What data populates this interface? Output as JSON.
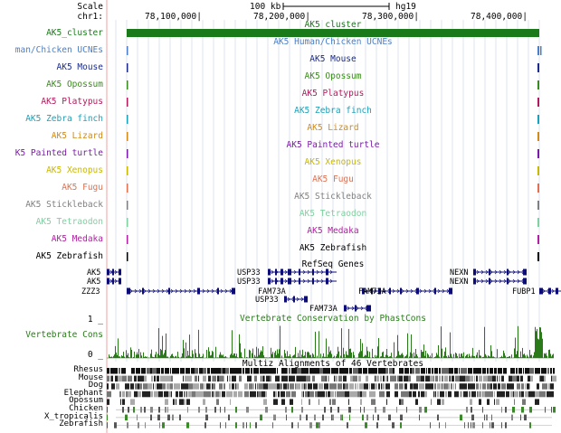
{
  "header": {
    "scale_label": "Scale",
    "chrom_label": "chr1:",
    "scale_bar_text": "100 kb",
    "assembly": "hg19",
    "ticks": [
      "78,100,000|",
      "78,200,000|",
      "78,300,000|",
      "78,400,000|"
    ]
  },
  "cluster": {
    "label": "AK5_cluster",
    "title": "AK5_cluster",
    "color": "#1a7a1a"
  },
  "species_tracks": [
    {
      "label": "man/Chicken UCNEs",
      "title": "AK5 Human/Chicken UCNEs",
      "color": "#4a7fc8"
    },
    {
      "label": "AK5 Mouse",
      "title": "AK5 Mouse",
      "color": "#1a2b8c"
    },
    {
      "label": "AK5 Opossum",
      "title": "AK5 Opossum",
      "color": "#3a8a1e"
    },
    {
      "label": "AK5 Platypus",
      "title": "AK5 Platypus",
      "color": "#b0195c"
    },
    {
      "label": "AK5 Zebra finch",
      "title": "AK5 Zebra finch",
      "color": "#1aa0b8"
    },
    {
      "label": "AK5 Lizard",
      "title": "AK5 Lizard",
      "color": "#d08a1a"
    },
    {
      "label": "K5 Painted turtle",
      "title": "AK5 Painted turtle",
      "color": "#7a1aa8"
    },
    {
      "label": "AK5 Xenopus",
      "title": "AK5 Xenopus",
      "color": "#c8b800"
    },
    {
      "label": "AK5 Fugu",
      "title": "AK5 Fugu",
      "color": "#e07050"
    },
    {
      "label": "AK5 Stickleback",
      "title": "AK5 Stickleback",
      "color": "#808080"
    },
    {
      "label": "AK5 Tetraodon",
      "title": "AK5 Tetraodon",
      "color": "#80d0a0"
    },
    {
      "label": "AK5 Medaka",
      "title": "AK5 Medaka",
      "color": "#b020a0"
    },
    {
      "label": "AK5 Zebrafish",
      "title": "AK5 Zebrafish",
      "color": "#000000"
    }
  ],
  "refseq": {
    "title": "RefSeq Genes",
    "genes": [
      "AK5",
      "AK5",
      "ZZZ3",
      "USP33",
      "USP33",
      "USP33",
      "FAM73A",
      "FAM73A",
      "FAM73A",
      "NEXN",
      "NEXN",
      "FUBP1"
    ],
    "gene_color": "#0c0c78"
  },
  "conservation": {
    "title": "Vertebrate Conservation by PhastCons",
    "label": "Vertebrate Cons",
    "max": "1 _",
    "min": "0 _",
    "color": "#2a7a1a"
  },
  "multiz": {
    "title": "Multiz Alignments of 46 Vertebrates",
    "species": [
      "Rhesus",
      "Mouse",
      "Dog",
      "Elephant",
      "Opossum",
      "Chicken",
      "X_tropicalis",
      "Zebrafish"
    ]
  }
}
